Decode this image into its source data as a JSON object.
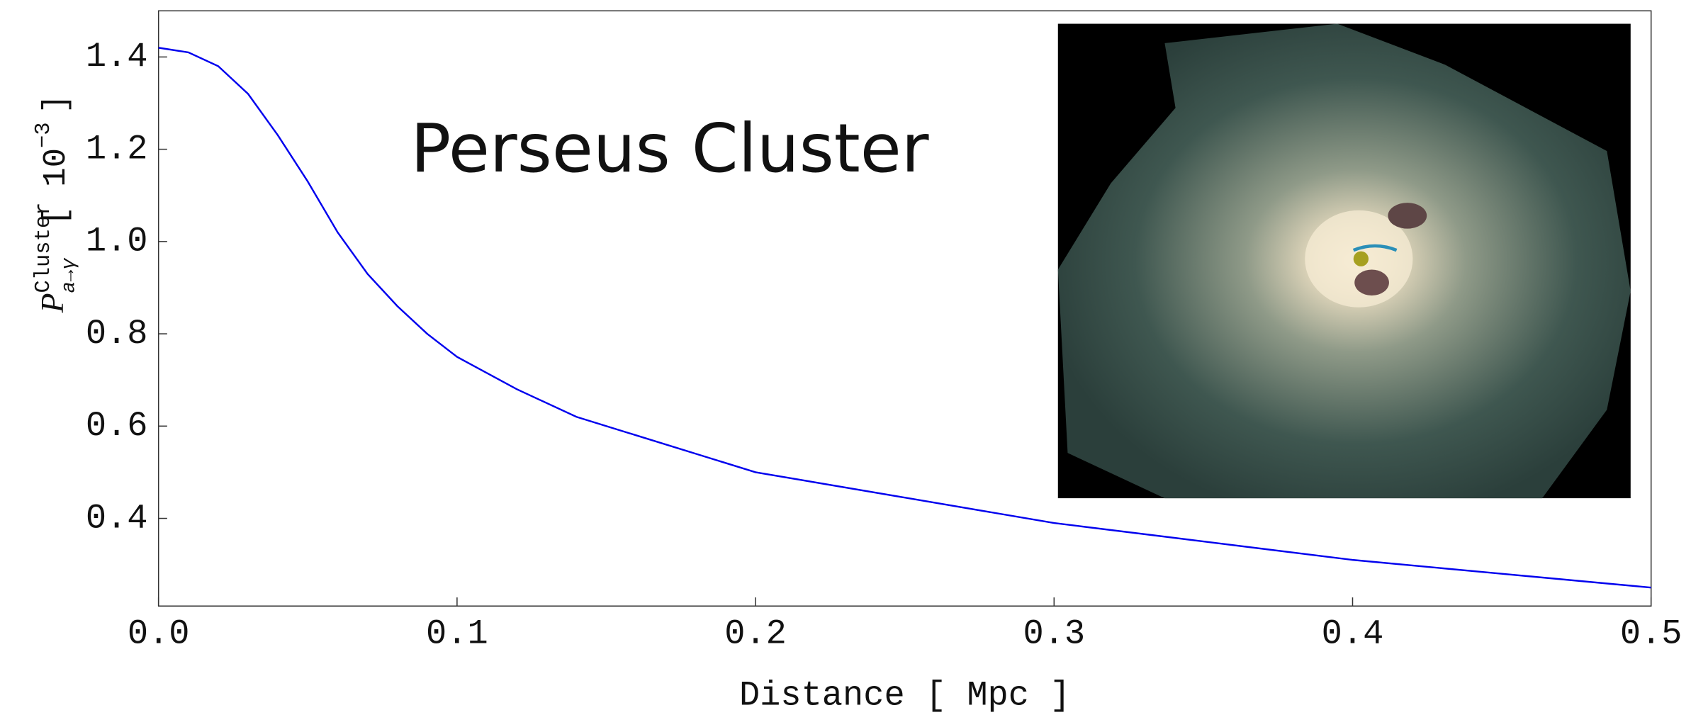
{
  "chart_data": {
    "type": "line",
    "title": "Perseus Cluster",
    "xlabel": "Distance [ Mpc ]",
    "ylabel": {
      "symbol": "P",
      "superscript": "Cluster",
      "subscript": "a→γ",
      "unit": "[ 10",
      "unit_exponent": "−3",
      "unit_close": "]"
    },
    "xlim": [
      0,
      0.5
    ],
    "ylim": [
      0.21,
      1.5
    ],
    "xticks": [
      {
        "value": 0,
        "label": "0.0"
      },
      0.1,
      0.2,
      0.3,
      0.4,
      0.5
    ],
    "yticks": [
      0.4,
      0.6,
      0.8,
      {
        "value": 1,
        "label": "1.0"
      },
      1.2,
      1.4
    ],
    "series": [
      {
        "color": "#0000ee",
        "x": [
          0,
          0.01,
          0.02,
          0.03,
          0.04,
          0.05,
          0.06,
          0.07,
          0.08,
          0.09,
          0.1,
          0.12,
          0.14,
          0.16,
          0.18,
          0.2,
          0.25,
          0.3,
          0.35,
          0.4,
          0.45,
          0.5
        ],
        "values": [
          1.42,
          1.41,
          1.38,
          1.32,
          1.23,
          1.13,
          1.02,
          0.93,
          0.86,
          0.8,
          0.75,
          0.68,
          0.62,
          0.58,
          0.54,
          0.5,
          0.445,
          0.39,
          0.35,
          0.31,
          0.28,
          0.25
        ]
      }
    ]
  }
}
